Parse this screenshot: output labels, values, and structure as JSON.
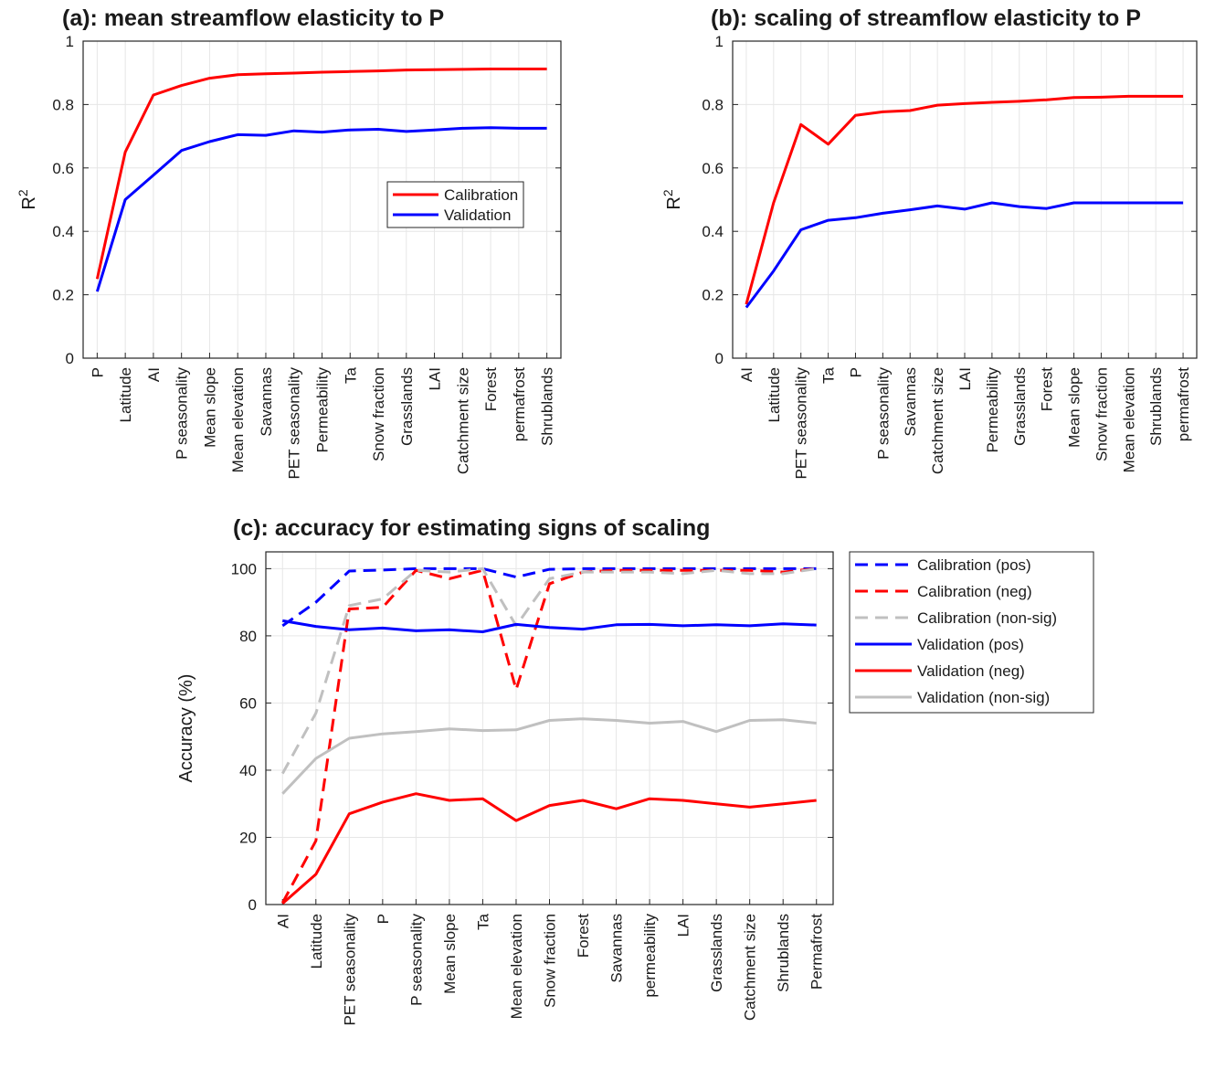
{
  "chart_data": [
    {
      "type": "line",
      "title": "(a): mean streamflow elasticity to P",
      "xlabel": "",
      "ylabel": "R",
      "ylabel_sup": "2",
      "ylim": [
        0,
        1
      ],
      "yticks": [
        "0",
        "0.2",
        "0.4",
        "0.6",
        "0.8",
        "1"
      ],
      "grid": true,
      "legend_position": "right",
      "categories": [
        "P",
        "Latitude",
        "AI",
        "P seasonality",
        "Mean slope",
        "Mean elevation",
        "Savannas",
        "PET seasonality",
        "Permeability",
        "Ta",
        "Snow fraction",
        "Grasslands",
        "LAI",
        "Catchment size",
        "Forest",
        "permafrost",
        "Shrublands"
      ],
      "series": [
        {
          "name": "Calibration",
          "color": "#ff0000",
          "dash": false,
          "values": [
            0.25,
            0.65,
            0.83,
            0.86,
            0.883,
            0.894,
            0.897,
            0.899,
            0.902,
            0.904,
            0.906,
            0.909,
            0.91,
            0.911,
            0.912,
            0.912,
            0.912
          ]
        },
        {
          "name": "Validation",
          "color": "#0000ff",
          "dash": false,
          "values": [
            0.21,
            0.5,
            0.577,
            0.655,
            0.683,
            0.705,
            0.703,
            0.717,
            0.713,
            0.72,
            0.722,
            0.715,
            0.72,
            0.725,
            0.727,
            0.725,
            0.725
          ]
        }
      ]
    },
    {
      "type": "line",
      "title": "(b): scaling of streamflow elasticity to P",
      "xlabel": "",
      "ylabel": "R",
      "ylabel_sup": "2",
      "ylim": [
        0,
        1
      ],
      "yticks": [
        "0",
        "0.2",
        "0.4",
        "0.6",
        "0.8",
        "1"
      ],
      "grid": true,
      "categories": [
        "AI",
        "Latitude",
        "PET seasonality",
        "Ta",
        "P",
        "P seasonality",
        "Savannas",
        "Catchment size",
        "LAI",
        "Permeability",
        "Grasslands",
        "Forest",
        "Mean slope",
        "Snow fraction",
        "Mean elevation",
        "Shrublands",
        "permafrost"
      ],
      "series": [
        {
          "name": "Calibration",
          "color": "#ff0000",
          "dash": false,
          "values": [
            0.17,
            0.49,
            0.737,
            0.675,
            0.766,
            0.777,
            0.781,
            0.798,
            0.803,
            0.807,
            0.81,
            0.815,
            0.822,
            0.823,
            0.826,
            0.826,
            0.826
          ]
        },
        {
          "name": "Validation",
          "color": "#0000ff",
          "dash": false,
          "values": [
            0.16,
            0.275,
            0.405,
            0.435,
            0.443,
            0.457,
            0.468,
            0.48,
            0.47,
            0.49,
            0.478,
            0.472,
            0.49,
            0.49,
            0.49,
            0.49,
            0.49
          ]
        }
      ]
    },
    {
      "type": "line",
      "title": "(c): accuracy for estimating signs of scaling",
      "xlabel": "",
      "ylabel": "Accuracy (%)",
      "ylim": [
        0,
        105
      ],
      "yticks": [
        "0",
        "20",
        "40",
        "60",
        "80",
        "100"
      ],
      "grid": true,
      "legend_position": "outside-right",
      "categories": [
        "AI",
        "Latitude",
        "PET seasonality",
        "P",
        "P seasonality",
        "Mean slope",
        "Ta",
        "Mean elevation",
        "Snow fraction",
        "Forest",
        "Savannas",
        "permeability",
        "LAI",
        "Grasslands",
        "Catchment size",
        "Shrublands",
        "Permafrost"
      ],
      "series": [
        {
          "name": "Calibration (pos)",
          "color": "#0000ff",
          "dash": true,
          "values": [
            83,
            90,
            99.3,
            99.6,
            100,
            100,
            100,
            97.5,
            99.8,
            100,
            100,
            100,
            100,
            100,
            100,
            100,
            100
          ]
        },
        {
          "name": "Calibration (neg)",
          "color": "#ff0000",
          "dash": true,
          "values": [
            0.5,
            19,
            88,
            88.5,
            99.5,
            97,
            99.5,
            64,
            95.5,
            99,
            99.5,
            99.5,
            99.5,
            99.5,
            99.5,
            99,
            100
          ]
        },
        {
          "name": "Calibration (non-sig)",
          "color": "#c0c0c0",
          "dash": true,
          "values": [
            39,
            57,
            89,
            91,
            99.5,
            99,
            100,
            83,
            97,
            99,
            99,
            99,
            98.5,
            99.5,
            98.5,
            98.5,
            100
          ]
        },
        {
          "name": "Validation (pos)",
          "color": "#0000ff",
          "dash": false,
          "values": [
            84.5,
            82.8,
            81.8,
            82.3,
            81.5,
            81.8,
            81.2,
            83.4,
            82.5,
            82,
            83.3,
            83.4,
            83,
            83.3,
            83,
            83.6,
            83.2
          ]
        },
        {
          "name": "Validation (neg)",
          "color": "#ff0000",
          "dash": false,
          "values": [
            0.3,
            9,
            27,
            30.5,
            33,
            31,
            31.5,
            25,
            29.5,
            31,
            28.5,
            31.5,
            31,
            30,
            29,
            30,
            31
          ]
        },
        {
          "name": "Validation (non-sig)",
          "color": "#c0c0c0",
          "dash": false,
          "values": [
            33,
            43.5,
            49.5,
            50.8,
            51.5,
            52.3,
            51.8,
            52,
            54.8,
            55.3,
            54.8,
            54,
            54.5,
            51.5,
            54.8,
            55,
            54
          ]
        }
      ]
    }
  ]
}
